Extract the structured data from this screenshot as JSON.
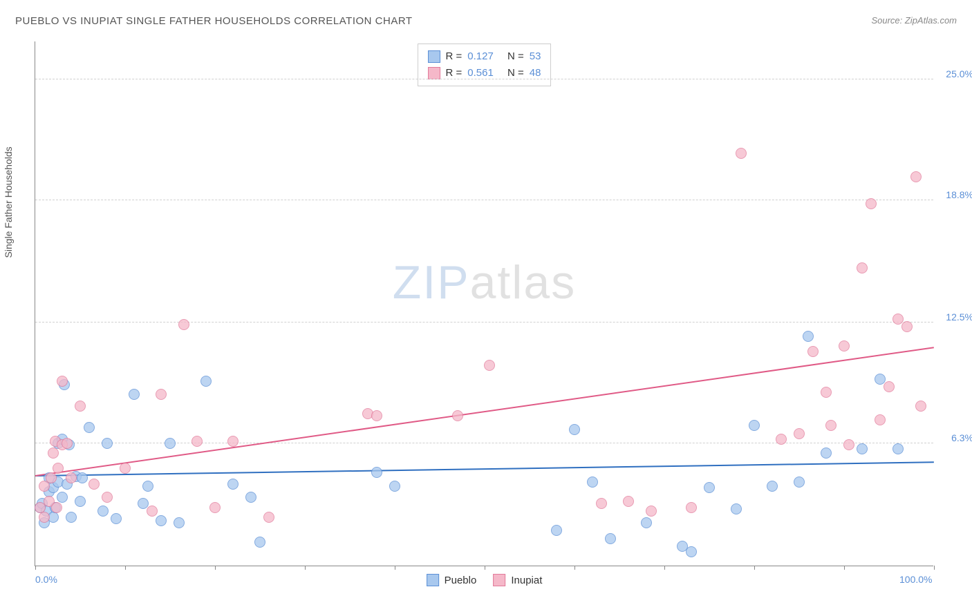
{
  "title": "PUEBLO VS INUPIAT SINGLE FATHER HOUSEHOLDS CORRELATION CHART",
  "source": "Source: ZipAtlas.com",
  "y_axis_label": "Single Father Households",
  "watermark": {
    "part1": "ZIP",
    "part2": "atlas"
  },
  "chart": {
    "type": "scatter",
    "xlim": [
      0,
      100
    ],
    "ylim": [
      0,
      27
    ],
    "x_ticks": [
      0,
      10,
      20,
      30,
      40,
      50,
      60,
      70,
      80,
      90,
      100
    ],
    "x_tick_labels": {
      "0": "0.0%",
      "100": "100.0%"
    },
    "y_ticks": [
      6.3,
      12.5,
      18.8,
      25.0
    ],
    "y_tick_labels": [
      "6.3%",
      "12.5%",
      "18.8%",
      "25.0%"
    ],
    "grid_color": "#d8d8d8",
    "axis_color": "#888888",
    "background_color": "#ffffff",
    "point_radius": 8,
    "point_opacity": 0.75
  },
  "series": [
    {
      "name": "Pueblo",
      "fill": "#a8c8ee",
      "stroke": "#5b8fd6",
      "line_color": "#2f6fc0",
      "r_label": "R =",
      "r_value": "0.127",
      "n_label": "N =",
      "n_value": "53",
      "trend": {
        "x1": 0,
        "y1": 4.6,
        "x2": 100,
        "y2": 5.3
      },
      "points": [
        [
          0.5,
          3.0
        ],
        [
          0.8,
          3.2
        ],
        [
          1.0,
          2.2
        ],
        [
          1.2,
          2.8
        ],
        [
          1.5,
          4.5
        ],
        [
          1.5,
          3.8
        ],
        [
          2.0,
          2.5
        ],
        [
          2.0,
          4.0
        ],
        [
          2.2,
          3.0
        ],
        [
          2.5,
          6.3
        ],
        [
          2.5,
          4.3
        ],
        [
          3.0,
          6.5
        ],
        [
          3.0,
          3.5
        ],
        [
          3.2,
          9.3
        ],
        [
          3.5,
          4.2
        ],
        [
          3.8,
          6.2
        ],
        [
          4.0,
          2.5
        ],
        [
          4.5,
          4.6
        ],
        [
          5.0,
          3.3
        ],
        [
          5.2,
          4.5
        ],
        [
          6.0,
          7.1
        ],
        [
          7.5,
          2.8
        ],
        [
          8.0,
          6.3
        ],
        [
          9.0,
          2.4
        ],
        [
          11.0,
          8.8
        ],
        [
          12.0,
          3.2
        ],
        [
          12.5,
          4.1
        ],
        [
          14.0,
          2.3
        ],
        [
          15.0,
          6.3
        ],
        [
          16.0,
          2.2
        ],
        [
          19.0,
          9.5
        ],
        [
          22.0,
          4.2
        ],
        [
          24.0,
          3.5
        ],
        [
          25.0,
          1.2
        ],
        [
          38.0,
          4.8
        ],
        [
          40.0,
          4.1
        ],
        [
          58.0,
          1.8
        ],
        [
          60.0,
          7.0
        ],
        [
          62.0,
          4.3
        ],
        [
          64.0,
          1.4
        ],
        [
          68.0,
          2.2
        ],
        [
          72.0,
          1.0
        ],
        [
          73.0,
          0.7
        ],
        [
          75.0,
          4.0
        ],
        [
          78.0,
          2.9
        ],
        [
          80.0,
          7.2
        ],
        [
          82.0,
          4.1
        ],
        [
          85.0,
          4.3
        ],
        [
          86.0,
          11.8
        ],
        [
          88.0,
          5.8
        ],
        [
          92.0,
          6.0
        ],
        [
          94.0,
          9.6
        ],
        [
          96.0,
          6.0
        ]
      ]
    },
    {
      "name": "Inupiat",
      "fill": "#f5b8c9",
      "stroke": "#e27a9a",
      "line_color": "#e05a86",
      "r_label": "R =",
      "r_value": "0.561",
      "n_label": "N =",
      "n_value": "48",
      "trend": {
        "x1": 0,
        "y1": 4.6,
        "x2": 100,
        "y2": 11.2
      },
      "points": [
        [
          0.5,
          3.0
        ],
        [
          1.0,
          4.1
        ],
        [
          1.0,
          2.5
        ],
        [
          1.5,
          3.3
        ],
        [
          1.8,
          4.5
        ],
        [
          2.0,
          5.8
        ],
        [
          2.2,
          6.4
        ],
        [
          2.4,
          3.0
        ],
        [
          2.5,
          5.0
        ],
        [
          3.0,
          6.2
        ],
        [
          3.0,
          9.5
        ],
        [
          3.5,
          6.3
        ],
        [
          4.0,
          4.5
        ],
        [
          5.0,
          8.2
        ],
        [
          6.5,
          4.2
        ],
        [
          8.0,
          3.5
        ],
        [
          10.0,
          5.0
        ],
        [
          13.0,
          2.8
        ],
        [
          14.0,
          8.8
        ],
        [
          16.5,
          12.4
        ],
        [
          18.0,
          6.4
        ],
        [
          20.0,
          3.0
        ],
        [
          22.0,
          6.4
        ],
        [
          26.0,
          2.5
        ],
        [
          37.0,
          7.8
        ],
        [
          38.0,
          7.7
        ],
        [
          47.0,
          7.7
        ],
        [
          50.5,
          10.3
        ],
        [
          63.0,
          3.2
        ],
        [
          66.0,
          3.3
        ],
        [
          68.5,
          2.8
        ],
        [
          73.0,
          3.0
        ],
        [
          78.5,
          21.2
        ],
        [
          83.0,
          6.5
        ],
        [
          85.0,
          6.8
        ],
        [
          86.5,
          11.0
        ],
        [
          88.0,
          8.9
        ],
        [
          88.5,
          7.2
        ],
        [
          90.0,
          11.3
        ],
        [
          90.5,
          6.2
        ],
        [
          92.0,
          15.3
        ],
        [
          93.0,
          18.6
        ],
        [
          94.0,
          7.5
        ],
        [
          95.0,
          9.2
        ],
        [
          96.0,
          12.7
        ],
        [
          97.0,
          12.3
        ],
        [
          98.0,
          20.0
        ],
        [
          98.5,
          8.2
        ]
      ]
    }
  ]
}
